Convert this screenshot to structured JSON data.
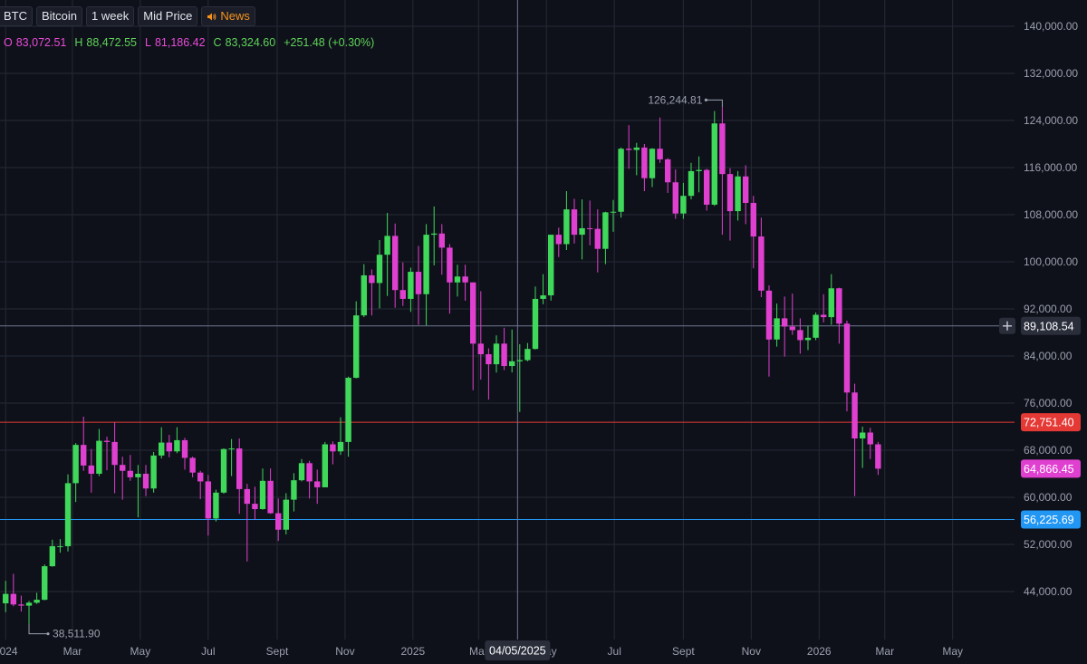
{
  "toolbar": {
    "symbol": "BTC",
    "name": "Bitcoin",
    "interval": "1 week",
    "price_type": "Mid Price",
    "news": "News"
  },
  "ohlc": {
    "o_label": "O",
    "o_value": "83,072.51",
    "h_label": "H",
    "h_value": "88,472.55",
    "l_label": "L",
    "l_value": "81,186.42",
    "c_label": "C",
    "c_value": "83,324.60",
    "change": "+251.48 (+0.30%)"
  },
  "colors": {
    "background": "#0f111a",
    "up": "#3fd85a",
    "down": "#e040d0",
    "grid": "#262a36",
    "red_line": "#e53935",
    "blue_line": "#2196f3",
    "crosshair": "#6f7690"
  },
  "chart_data": {
    "type": "candlestick",
    "interval": "1 week",
    "ylim": [
      37000,
      143000
    ],
    "xlim": [
      "2023-12-31",
      "2026-05-01"
    ],
    "ytick_labels": [
      "140,000.00",
      "132,000.00",
      "124,000.00",
      "116,000.00",
      "108,000.00",
      "100,000.00",
      "92,000.00",
      "84,000.00",
      "76,000.00",
      "68,000.00",
      "60,000.00",
      "52,000.00",
      "44,000.00"
    ],
    "yticks": [
      140000,
      132000,
      124000,
      116000,
      108000,
      100000,
      92000,
      84000,
      76000,
      68000,
      60000,
      52000,
      44000
    ],
    "xtick_labels": [
      "2024",
      "Mar",
      "May",
      "Jul",
      "Sept",
      "Nov",
      "2025",
      "Mar",
      "May",
      "Jul",
      "Sept",
      "Nov",
      "2026",
      "Mar",
      "May"
    ],
    "xticks": [
      "2024-01-01",
      "2024-03-01",
      "2024-05-01",
      "2024-07-01",
      "2024-09-01",
      "2024-11-01",
      "2025-01-01",
      "2025-03-01",
      "2025-05-01",
      "2025-07-01",
      "2025-09-01",
      "2025-11-01",
      "2026-01-01",
      "2026-03-01",
      "2026-05-01"
    ],
    "grid": true,
    "candles": [
      {
        "date": "2024-01-01",
        "o": 42000,
        "h": 45800,
        "l": 40500,
        "c": 43600
      },
      {
        "date": "2024-01-08",
        "o": 43600,
        "h": 47000,
        "l": 41500,
        "c": 41800
      },
      {
        "date": "2024-01-15",
        "o": 41800,
        "h": 43300,
        "l": 40600,
        "c": 41600
      },
      {
        "date": "2024-01-22",
        "o": 41600,
        "h": 42400,
        "l": 38512,
        "c": 42100
      },
      {
        "date": "2024-01-29",
        "o": 42100,
        "h": 43800,
        "l": 41900,
        "c": 42600
      },
      {
        "date": "2024-02-05",
        "o": 42600,
        "h": 48600,
        "l": 42500,
        "c": 48300
      },
      {
        "date": "2024-02-12",
        "o": 48300,
        "h": 52800,
        "l": 48200,
        "c": 51700
      },
      {
        "date": "2024-02-19",
        "o": 51700,
        "h": 52900,
        "l": 50600,
        "c": 51700
      },
      {
        "date": "2024-02-26",
        "o": 51700,
        "h": 63900,
        "l": 50800,
        "c": 62400
      },
      {
        "date": "2024-03-04",
        "o": 62400,
        "h": 69200,
        "l": 59200,
        "c": 68900
      },
      {
        "date": "2024-03-11",
        "o": 68900,
        "h": 73700,
        "l": 64500,
        "c": 65400
      },
      {
        "date": "2024-03-18",
        "o": 65400,
        "h": 68200,
        "l": 60800,
        "c": 64000
      },
      {
        "date": "2024-03-25",
        "o": 64000,
        "h": 71600,
        "l": 63600,
        "c": 69600
      },
      {
        "date": "2024-04-01",
        "o": 69600,
        "h": 70300,
        "l": 64600,
        "c": 69400
      },
      {
        "date": "2024-04-08",
        "o": 69400,
        "h": 72700,
        "l": 60700,
        "c": 65500
      },
      {
        "date": "2024-04-15",
        "o": 65500,
        "h": 66900,
        "l": 59600,
        "c": 64500
      },
      {
        "date": "2024-04-22",
        "o": 64500,
        "h": 67200,
        "l": 62800,
        "c": 63400
      },
      {
        "date": "2024-04-29",
        "o": 63400,
        "h": 65500,
        "l": 56600,
        "c": 64000
      },
      {
        "date": "2024-05-06",
        "o": 64000,
        "h": 65500,
        "l": 60200,
        "c": 61500
      },
      {
        "date": "2024-05-13",
        "o": 61500,
        "h": 67700,
        "l": 60800,
        "c": 67100
      },
      {
        "date": "2024-05-20",
        "o": 67100,
        "h": 71900,
        "l": 66600,
        "c": 69300
      },
      {
        "date": "2024-05-27",
        "o": 69300,
        "h": 70600,
        "l": 66800,
        "c": 67800
      },
      {
        "date": "2024-06-03",
        "o": 67800,
        "h": 71900,
        "l": 67500,
        "c": 69700
      },
      {
        "date": "2024-06-10",
        "o": 69700,
        "h": 70100,
        "l": 64700,
        "c": 66700
      },
      {
        "date": "2024-06-17",
        "o": 66700,
        "h": 66900,
        "l": 63400,
        "c": 64200
      },
      {
        "date": "2024-06-24",
        "o": 64200,
        "h": 64500,
        "l": 59700,
        "c": 62700
      },
      {
        "date": "2024-07-01",
        "o": 62700,
        "h": 63800,
        "l": 53500,
        "c": 56400
      },
      {
        "date": "2024-07-08",
        "o": 56400,
        "h": 61300,
        "l": 55900,
        "c": 60800
      },
      {
        "date": "2024-07-15",
        "o": 60800,
        "h": 68300,
        "l": 60600,
        "c": 68200
      },
      {
        "date": "2024-07-22",
        "o": 68200,
        "h": 69900,
        "l": 63600,
        "c": 68300
      },
      {
        "date": "2024-07-29",
        "o": 68300,
        "h": 70000,
        "l": 57200,
        "c": 61400
      },
      {
        "date": "2024-08-05",
        "o": 61400,
        "h": 62300,
        "l": 49100,
        "c": 58900
      },
      {
        "date": "2024-08-12",
        "o": 58900,
        "h": 61800,
        "l": 56200,
        "c": 58000
      },
      {
        "date": "2024-08-19",
        "o": 58000,
        "h": 64900,
        "l": 57900,
        "c": 62800
      },
      {
        "date": "2024-08-26",
        "o": 62800,
        "h": 64900,
        "l": 57200,
        "c": 57300
      },
      {
        "date": "2024-09-02",
        "o": 57300,
        "h": 59800,
        "l": 52600,
        "c": 54500
      },
      {
        "date": "2024-09-09",
        "o": 54500,
        "h": 60700,
        "l": 53700,
        "c": 59600
      },
      {
        "date": "2024-09-16",
        "o": 59600,
        "h": 64100,
        "l": 57600,
        "c": 62900
      },
      {
        "date": "2024-09-23",
        "o": 62900,
        "h": 66500,
        "l": 62700,
        "c": 65800
      },
      {
        "date": "2024-09-30",
        "o": 65800,
        "h": 66200,
        "l": 59800,
        "c": 62700
      },
      {
        "date": "2024-10-07",
        "o": 62700,
        "h": 64700,
        "l": 58900,
        "c": 61700
      },
      {
        "date": "2024-10-14",
        "o": 61700,
        "h": 69400,
        "l": 61700,
        "c": 69000
      },
      {
        "date": "2024-10-21",
        "o": 69000,
        "h": 69500,
        "l": 65600,
        "c": 67800
      },
      {
        "date": "2024-10-28",
        "o": 67800,
        "h": 73600,
        "l": 67200,
        "c": 69400
      },
      {
        "date": "2024-11-04",
        "o": 69400,
        "h": 80500,
        "l": 66900,
        "c": 80300
      },
      {
        "date": "2024-11-11",
        "o": 80300,
        "h": 93300,
        "l": 80200,
        "c": 90900
      },
      {
        "date": "2024-11-18",
        "o": 90900,
        "h": 99600,
        "l": 90600,
        "c": 97700
      },
      {
        "date": "2024-11-25",
        "o": 97700,
        "h": 98700,
        "l": 90900,
        "c": 96400
      },
      {
        "date": "2024-12-02",
        "o": 96400,
        "h": 103700,
        "l": 92100,
        "c": 101200
      },
      {
        "date": "2024-12-09",
        "o": 101200,
        "h": 108300,
        "l": 94200,
        "c": 104400
      },
      {
        "date": "2024-12-16",
        "o": 104400,
        "h": 106500,
        "l": 92200,
        "c": 95200
      },
      {
        "date": "2024-12-23",
        "o": 95200,
        "h": 99900,
        "l": 92500,
        "c": 93700
      },
      {
        "date": "2024-12-30",
        "o": 93700,
        "h": 99000,
        "l": 91500,
        "c": 98300
      },
      {
        "date": "2025-01-06",
        "o": 98300,
        "h": 102700,
        "l": 89300,
        "c": 94500
      },
      {
        "date": "2025-01-13",
        "o": 94500,
        "h": 106400,
        "l": 89200,
        "c": 104600
      },
      {
        "date": "2025-01-20",
        "o": 104600,
        "h": 109400,
        "l": 99400,
        "c": 104800
      },
      {
        "date": "2025-01-27",
        "o": 104800,
        "h": 106400,
        "l": 97800,
        "c": 102400
      },
      {
        "date": "2025-02-03",
        "o": 102400,
        "h": 103000,
        "l": 91200,
        "c": 96500
      },
      {
        "date": "2025-02-10",
        "o": 96500,
        "h": 99500,
        "l": 94100,
        "c": 97500
      },
      {
        "date": "2025-02-17",
        "o": 97500,
        "h": 99500,
        "l": 93400,
        "c": 96500
      },
      {
        "date": "2025-02-24",
        "o": 96500,
        "h": 96500,
        "l": 78200,
        "c": 86100
      },
      {
        "date": "2025-03-03",
        "o": 86100,
        "h": 95000,
        "l": 80000,
        "c": 84300
      },
      {
        "date": "2025-03-10",
        "o": 84300,
        "h": 85300,
        "l": 76600,
        "c": 82600
      },
      {
        "date": "2025-03-17",
        "o": 82600,
        "h": 87500,
        "l": 81200,
        "c": 86100
      },
      {
        "date": "2025-03-24",
        "o": 86100,
        "h": 88800,
        "l": 81600,
        "c": 82300
      },
      {
        "date": "2025-03-31",
        "o": 82300,
        "h": 88500,
        "l": 81200,
        "c": 83100
      },
      {
        "date": "2025-04-07",
        "o": 83100,
        "h": 86000,
        "l": 74500,
        "c": 83300
      },
      {
        "date": "2025-04-14",
        "o": 83300,
        "h": 86200,
        "l": 83100,
        "c": 85200
      },
      {
        "date": "2025-04-21",
        "o": 85200,
        "h": 95800,
        "l": 85100,
        "c": 93700
      },
      {
        "date": "2025-04-28",
        "o": 93700,
        "h": 97900,
        "l": 92800,
        "c": 94300
      },
      {
        "date": "2025-05-05",
        "o": 94300,
        "h": 104100,
        "l": 93400,
        "c": 104600
      },
      {
        "date": "2025-05-12",
        "o": 104600,
        "h": 105800,
        "l": 100800,
        "c": 103000
      },
      {
        "date": "2025-05-19",
        "o": 103000,
        "h": 112000,
        "l": 102000,
        "c": 108900
      },
      {
        "date": "2025-05-26",
        "o": 108900,
        "h": 110700,
        "l": 103100,
        "c": 104600
      },
      {
        "date": "2025-06-02",
        "o": 104600,
        "h": 110600,
        "l": 100400,
        "c": 105700
      },
      {
        "date": "2025-06-09",
        "o": 105700,
        "h": 110400,
        "l": 102800,
        "c": 105600
      },
      {
        "date": "2025-06-16",
        "o": 105600,
        "h": 108900,
        "l": 98200,
        "c": 102200
      },
      {
        "date": "2025-06-23",
        "o": 102200,
        "h": 108500,
        "l": 99600,
        "c": 108400
      },
      {
        "date": "2025-06-30",
        "o": 108400,
        "h": 110500,
        "l": 105100,
        "c": 108500
      },
      {
        "date": "2025-07-07",
        "o": 108500,
        "h": 119400,
        "l": 107500,
        "c": 119200
      },
      {
        "date": "2025-07-14",
        "o": 119200,
        "h": 123200,
        "l": 115800,
        "c": 119000
      },
      {
        "date": "2025-07-21",
        "o": 119000,
        "h": 120200,
        "l": 114700,
        "c": 119400
      },
      {
        "date": "2025-07-28",
        "o": 119400,
        "h": 120000,
        "l": 112000,
        "c": 114200
      },
      {
        "date": "2025-08-04",
        "o": 114200,
        "h": 119300,
        "l": 112700,
        "c": 119200
      },
      {
        "date": "2025-08-11",
        "o": 119200,
        "h": 124500,
        "l": 116800,
        "c": 117400
      },
      {
        "date": "2025-08-18",
        "o": 117400,
        "h": 117600,
        "l": 111700,
        "c": 113500
      },
      {
        "date": "2025-08-25",
        "o": 113500,
        "h": 115700,
        "l": 107300,
        "c": 108200
      },
      {
        "date": "2025-09-01",
        "o": 108200,
        "h": 113400,
        "l": 107300,
        "c": 111200
      },
      {
        "date": "2025-09-08",
        "o": 111200,
        "h": 116800,
        "l": 110600,
        "c": 115400
      },
      {
        "date": "2025-09-15",
        "o": 115400,
        "h": 117900,
        "l": 111800,
        "c": 115600
      },
      {
        "date": "2025-09-22",
        "o": 115600,
        "h": 115800,
        "l": 108700,
        "c": 109700
      },
      {
        "date": "2025-09-29",
        "o": 109700,
        "h": 125600,
        "l": 109500,
        "c": 123500
      },
      {
        "date": "2025-10-06",
        "o": 123500,
        "h": 126245,
        "l": 104600,
        "c": 114900
      },
      {
        "date": "2025-10-13",
        "o": 114900,
        "h": 115900,
        "l": 103600,
        "c": 108600
      },
      {
        "date": "2025-10-20",
        "o": 108600,
        "h": 115400,
        "l": 107000,
        "c": 114500
      },
      {
        "date": "2025-10-27",
        "o": 114500,
        "h": 116400,
        "l": 106400,
        "c": 110000
      },
      {
        "date": "2025-11-03",
        "o": 110000,
        "h": 111200,
        "l": 98900,
        "c": 104300
      },
      {
        "date": "2025-11-10",
        "o": 104300,
        "h": 107500,
        "l": 94000,
        "c": 95100
      },
      {
        "date": "2025-11-17",
        "o": 95100,
        "h": 96000,
        "l": 80500,
        "c": 86800
      },
      {
        "date": "2025-11-24",
        "o": 86800,
        "h": 92900,
        "l": 85600,
        "c": 90400
      },
      {
        "date": "2025-12-01",
        "o": 90400,
        "h": 94100,
        "l": 83900,
        "c": 89000
      },
      {
        "date": "2025-12-08",
        "o": 89000,
        "h": 94600,
        "l": 87600,
        "c": 88400
      },
      {
        "date": "2025-12-15",
        "o": 88400,
        "h": 90400,
        "l": 84400,
        "c": 86700
      },
      {
        "date": "2025-12-22",
        "o": 86700,
        "h": 89100,
        "l": 85000,
        "c": 87100
      },
      {
        "date": "2025-12-29",
        "o": 87100,
        "h": 91400,
        "l": 86700,
        "c": 91000
      },
      {
        "date": "2026-01-05",
        "o": 91000,
        "h": 94500,
        "l": 89700,
        "c": 90600
      },
      {
        "date": "2026-01-12",
        "o": 90600,
        "h": 97900,
        "l": 89300,
        "c": 95500
      },
      {
        "date": "2026-01-19",
        "o": 95500,
        "h": 95600,
        "l": 86100,
        "c": 89500
      },
      {
        "date": "2026-01-26",
        "o": 89500,
        "h": 90000,
        "l": 74600,
        "c": 77800
      },
      {
        "date": "2026-02-02",
        "o": 77800,
        "h": 79300,
        "l": 60200,
        "c": 70000
      },
      {
        "date": "2026-02-09",
        "o": 70000,
        "h": 72000,
        "l": 65000,
        "c": 71000
      },
      {
        "date": "2026-02-16",
        "o": 71000,
        "h": 71800,
        "l": 66500,
        "c": 69000
      },
      {
        "date": "2026-02-23",
        "o": 69000,
        "h": 69400,
        "l": 63800,
        "c": 64866
      }
    ],
    "horizontal_lines": [
      {
        "label": "89,108.54",
        "value": 89108.54,
        "kind": "crosshair"
      },
      {
        "label": "72,751.40",
        "value": 72751.4,
        "kind": "red"
      },
      {
        "label": "64,866.45",
        "value": 64866.45,
        "kind": "price"
      },
      {
        "label": "56,225.69",
        "value": 56225.69,
        "kind": "blue"
      }
    ],
    "crosshair_date": "2025-04-05",
    "crosshair_label": "04/05/2025",
    "annotations": [
      {
        "label": "126,244.81",
        "value": 126244.81,
        "date": "2025-10-06",
        "kind": "high"
      },
      {
        "label": "38,511.90",
        "value": 38511.9,
        "date": "2024-01-22",
        "kind": "low"
      }
    ]
  }
}
